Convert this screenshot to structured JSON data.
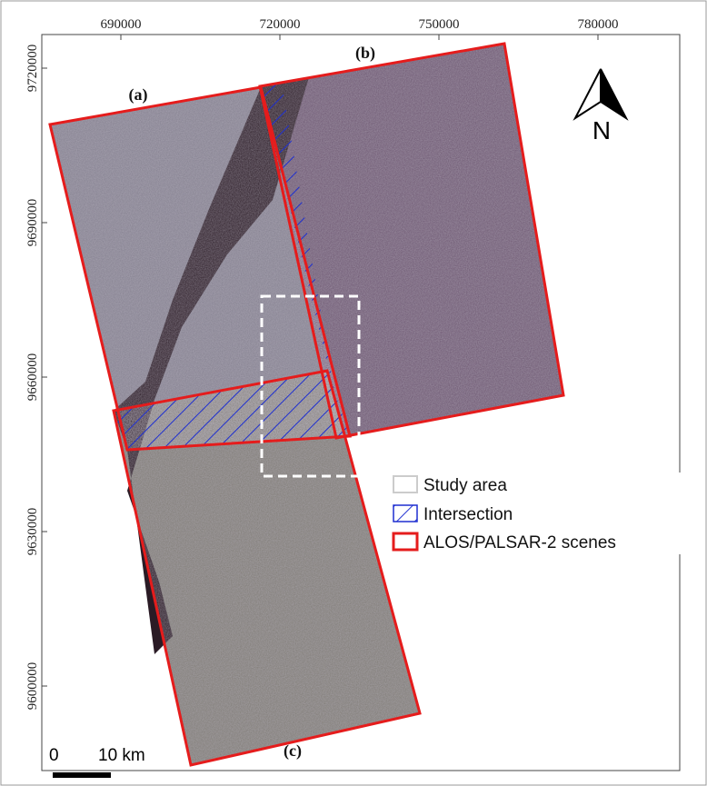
{
  "x_ticks": [
    690000,
    720000,
    750000,
    780000
  ],
  "y_ticks": [
    9720000,
    9690000,
    9660000,
    9630000,
    9600000
  ],
  "scenes": [
    {
      "label": "(a)"
    },
    {
      "label": "(b)"
    },
    {
      "label": "(c)"
    }
  ],
  "north": "N",
  "scale_bar": {
    "start": "0",
    "end": "10 km"
  },
  "legend": [
    "Study area",
    "Intersection",
    "ALOS/PALSAR-2 scenes"
  ]
}
